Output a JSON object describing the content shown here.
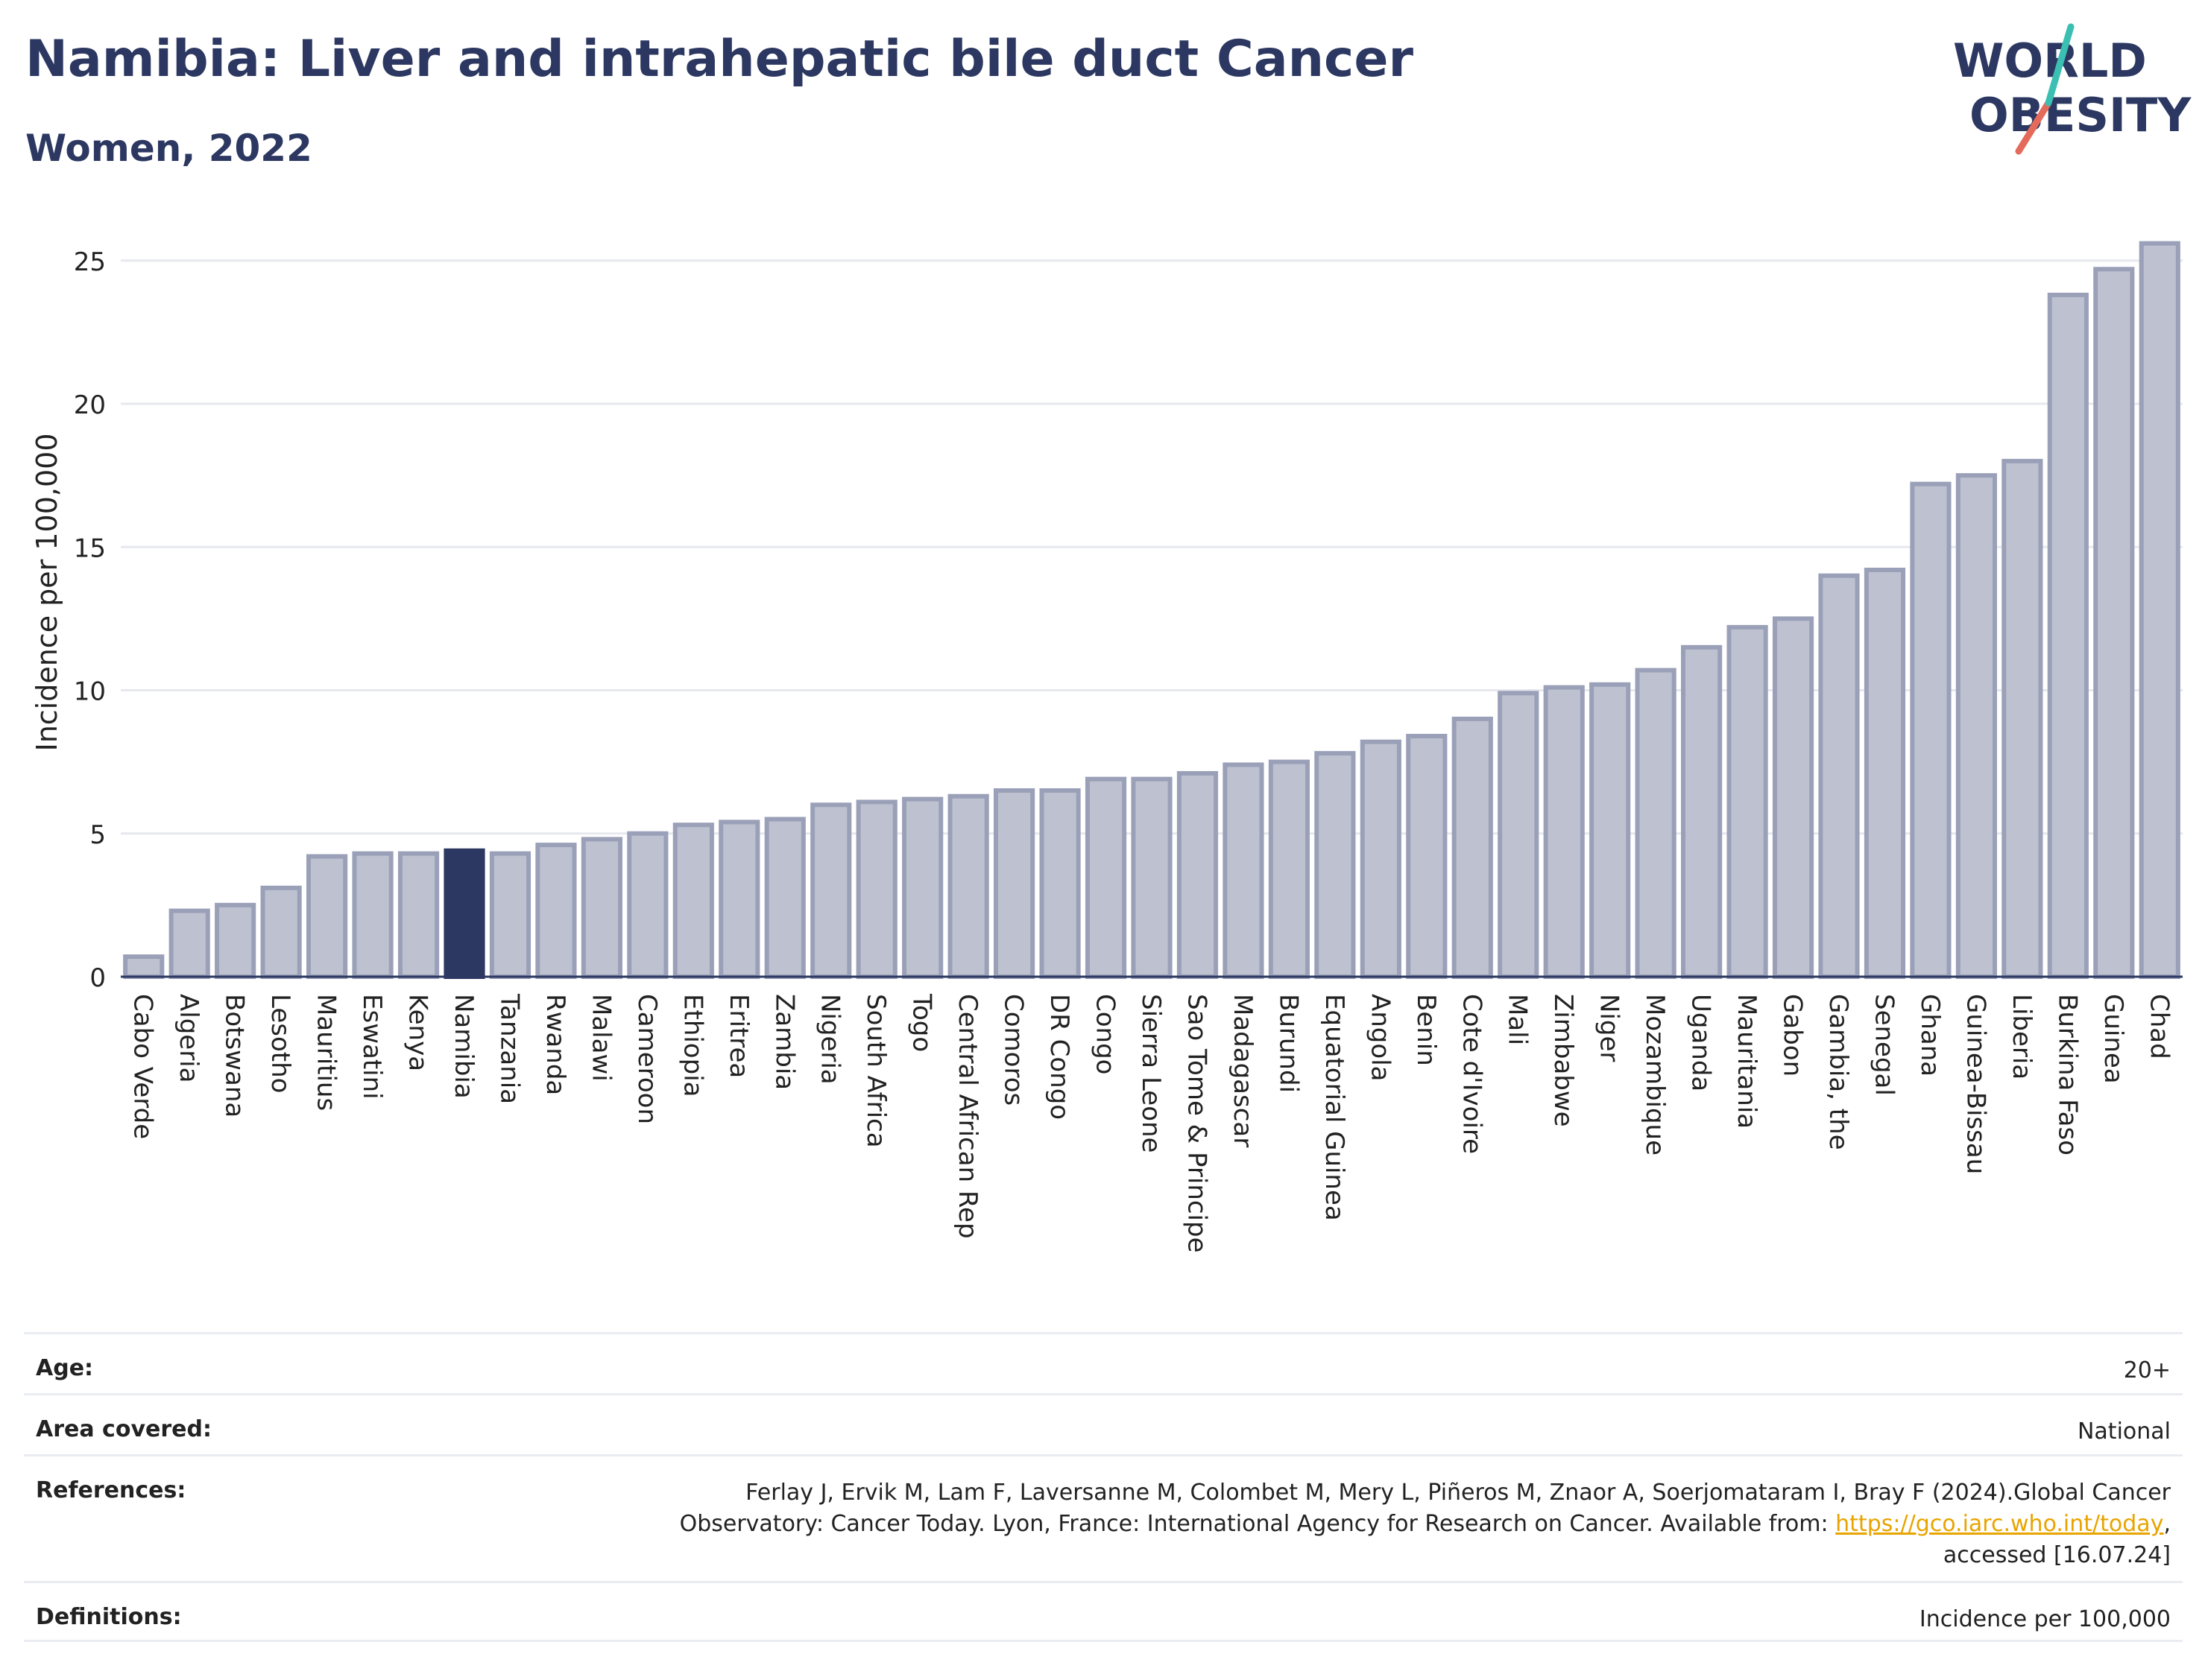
{
  "header": {
    "title": "Namibia: Liver and intrahepatic bile duct Cancer",
    "subtitle": "Women, 2022"
  },
  "logo": {
    "line1": "WORLD",
    "line2": "OBESITY"
  },
  "colors": {
    "title": "#2c3861",
    "bar": "#bec2d0",
    "bar_stroke": "#9aa0b8",
    "highlight": "#2c3861",
    "accent_teal": "#3bbfb2",
    "accent_coral": "#e46b5b"
  },
  "chart_data": {
    "type": "bar",
    "ylabel": "Incidence per 100,000",
    "ylim": [
      0,
      26
    ],
    "yticks": [
      0,
      5,
      10,
      15,
      20,
      25
    ],
    "grid": true,
    "highlight": "Namibia",
    "categories": [
      "Cabo Verde",
      "Algeria",
      "Botswana",
      "Lesotho",
      "Mauritius",
      "Eswatini",
      "Kenya",
      "Namibia",
      "Tanzania",
      "Rwanda",
      "Malawi",
      "Cameroon",
      "Ethiopia",
      "Eritrea",
      "Zambia",
      "Nigeria",
      "South Africa",
      "Togo",
      "Central African Rep",
      "Comoros",
      "DR Congo",
      "Congo",
      "Sierra Leone",
      "Sao Tome & Principe",
      "Madagascar",
      "Burundi",
      "Equatorial Guinea",
      "Angola",
      "Benin",
      "Cote d'Ivoire",
      "Mali",
      "Zimbabwe",
      "Niger",
      "Mozambique",
      "Uganda",
      "Mauritania",
      "Gabon",
      "Gambia, the",
      "Senegal",
      "Ghana",
      "Guinea-Bissau",
      "Liberia",
      "Burkina Faso",
      "Guinea",
      "Chad"
    ],
    "values": [
      0.7,
      2.3,
      2.5,
      3.1,
      4.2,
      4.3,
      4.3,
      4.4,
      4.3,
      4.6,
      4.8,
      5.0,
      5.3,
      5.4,
      5.5,
      6.0,
      6.1,
      6.2,
      6.3,
      6.5,
      6.5,
      6.9,
      6.9,
      7.1,
      7.4,
      7.5,
      7.8,
      8.2,
      8.4,
      9.0,
      9.9,
      10.1,
      10.2,
      10.7,
      11.5,
      12.2,
      12.5,
      14.0,
      14.2,
      17.2,
      17.5,
      18.0,
      23.8,
      24.7,
      25.6
    ]
  },
  "meta": {
    "age_label": "Age:",
    "age_value": "20+",
    "area_label": "Area covered:",
    "area_value": "National",
    "ref_label": "References:",
    "ref_line1": "Ferlay J, Ervik M, Lam F, Laversanne M, Colombet M, Mery L, Piñeros M, Znaor A, Soerjomataram I, Bray F (2024).Global Cancer",
    "ref_line2_pre": "Observatory: Cancer Today. Lyon, France: International Agency for Research on Cancer. Available from: ",
    "ref_link": "https://gco.iarc.who.int/today",
    "ref_line2_post": ",",
    "ref_line3": "accessed [16.07.24]",
    "def_label": "Definitions:",
    "def_value": "Incidence per 100,000"
  }
}
